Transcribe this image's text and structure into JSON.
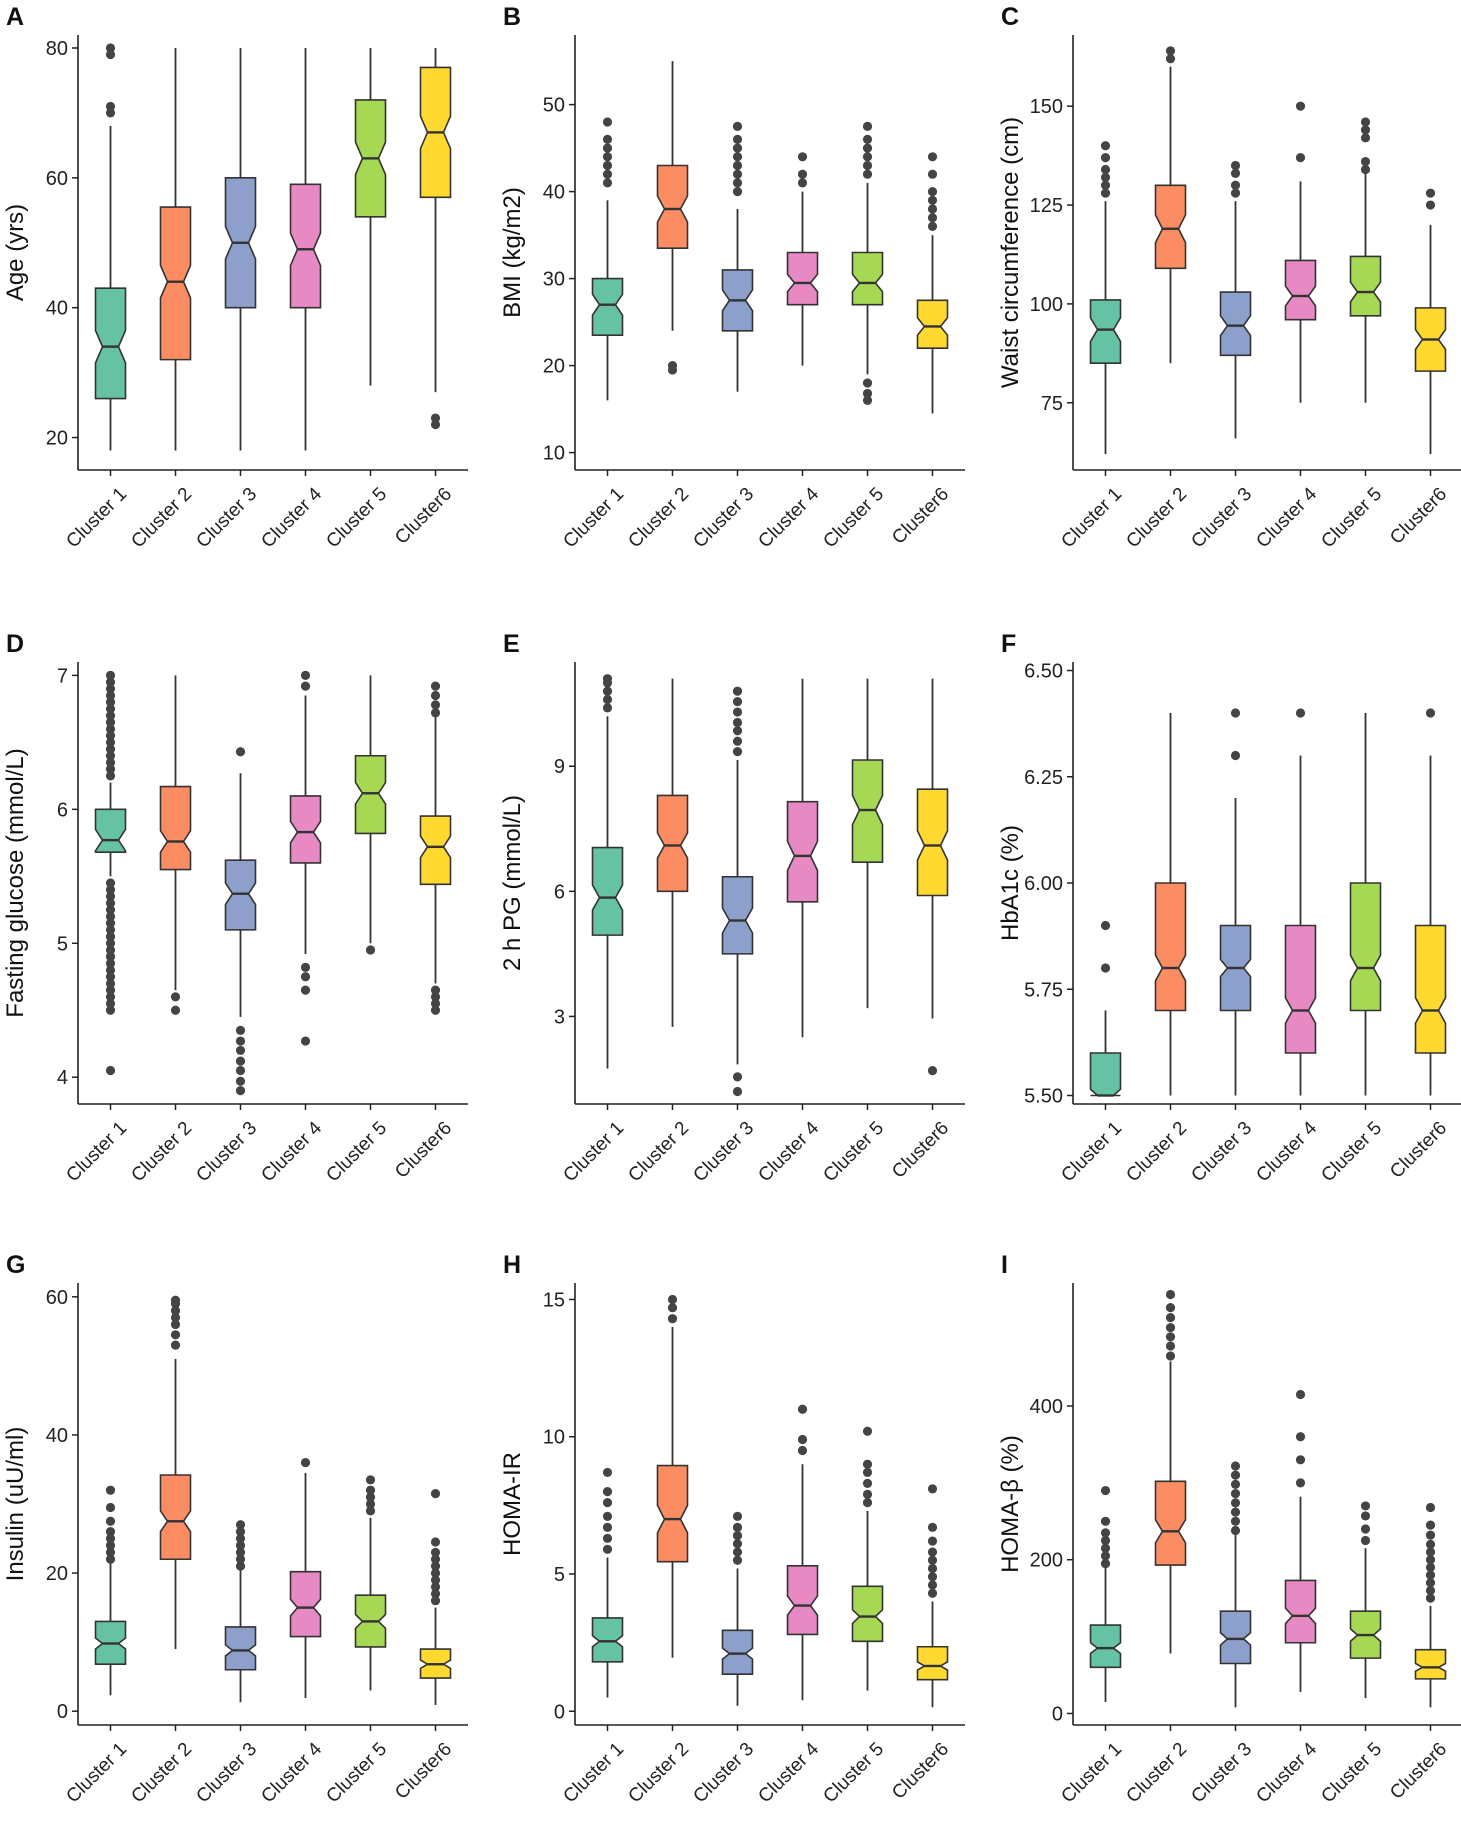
{
  "figure": {
    "colors": [
      "#66c2a5",
      "#fc8d62",
      "#8da0cb",
      "#e78ac3",
      "#a6d854",
      "#ffd92f"
    ],
    "line_color": "#333333",
    "outlier_color": "#444444"
  },
  "chart_data": [
    {
      "type": "box",
      "panel": "A",
      "ylabel": "Age (yrs)",
      "categories": [
        "Cluster 1",
        "Cluster 2",
        "Cluster 3",
        "Cluster 4",
        "Cluster 5",
        "Cluster6"
      ],
      "ylim": [
        15,
        82
      ],
      "yticks": [
        20,
        40,
        60,
        80
      ],
      "tick_labels": [
        "20",
        "40",
        "60",
        "80"
      ],
      "boxes": [
        {
          "q1": 26,
          "median": 34,
          "q3": 43,
          "notch": 2.5,
          "lo": 18,
          "hi": 68,
          "outliers": [
            70,
            71,
            79,
            80
          ]
        },
        {
          "q1": 32,
          "median": 44,
          "q3": 55.5,
          "notch": 2.5,
          "lo": 18,
          "hi": 80,
          "outliers": []
        },
        {
          "q1": 40,
          "median": 50,
          "q3": 60,
          "notch": 2.5,
          "lo": 18,
          "hi": 80,
          "outliers": []
        },
        {
          "q1": 40,
          "median": 49,
          "q3": 59,
          "notch": 2.5,
          "lo": 18,
          "hi": 80,
          "outliers": []
        },
        {
          "q1": 54,
          "median": 63,
          "q3": 72,
          "notch": 2.5,
          "lo": 28,
          "hi": 80,
          "outliers": []
        },
        {
          "q1": 57,
          "median": 67,
          "q3": 77,
          "notch": 2.5,
          "lo": 27,
          "hi": 80,
          "outliers": [
            22,
            23
          ]
        }
      ]
    },
    {
      "type": "box",
      "panel": "B",
      "ylabel": "BMI (kg/m2)",
      "categories": [
        "Cluster 1",
        "Cluster 2",
        "Cluster 3",
        "Cluster 4",
        "Cluster 5",
        "Cluster6"
      ],
      "ylim": [
        8,
        58
      ],
      "yticks": [
        10,
        20,
        30,
        40,
        50
      ],
      "tick_labels": [
        "10",
        "20",
        "30",
        "40",
        "50"
      ],
      "boxes": [
        {
          "q1": 23.5,
          "median": 27,
          "q3": 30,
          "notch": 1.2,
          "lo": 16,
          "hi": 39,
          "outliers": [
            41,
            42,
            43,
            44,
            45,
            46,
            48
          ]
        },
        {
          "q1": 33.5,
          "median": 38,
          "q3": 43,
          "notch": 1.5,
          "lo": 24,
          "hi": 55,
          "outliers": [
            19.5,
            20
          ]
        },
        {
          "q1": 24,
          "median": 27.5,
          "q3": 31,
          "notch": 1.2,
          "lo": 17,
          "hi": 38,
          "outliers": [
            40,
            41,
            42,
            43,
            44,
            45,
            46,
            47.5
          ]
        },
        {
          "q1": 27,
          "median": 29.5,
          "q3": 33,
          "notch": 1.0,
          "lo": 20,
          "hi": 40,
          "outliers": [
            41,
            42,
            44
          ]
        },
        {
          "q1": 27,
          "median": 29.5,
          "q3": 33,
          "notch": 1.0,
          "lo": 19,
          "hi": 41,
          "outliers": [
            16,
            16.8,
            18,
            42,
            43,
            44,
            45,
            46,
            47.5
          ]
        },
        {
          "q1": 22,
          "median": 24.5,
          "q3": 27.5,
          "notch": 1.0,
          "lo": 14.5,
          "hi": 35,
          "outliers": [
            36,
            37,
            38,
            39,
            40,
            42,
            44
          ]
        }
      ]
    },
    {
      "type": "box",
      "panel": "C",
      "ylabel": "Waist circumference (cm)",
      "categories": [
        "Cluster 1",
        "Cluster 2",
        "Cluster 3",
        "Cluster 4",
        "Cluster 5",
        "Cluster6"
      ],
      "ylim": [
        58,
        168
      ],
      "yticks": [
        75,
        100,
        125,
        150
      ],
      "tick_labels": [
        "75",
        "100",
        "125",
        "150"
      ],
      "boxes": [
        {
          "q1": 85,
          "median": 93.5,
          "q3": 101,
          "notch": 3,
          "lo": 62,
          "hi": 126,
          "outliers": [
            128,
            130,
            132,
            134,
            137,
            140
          ]
        },
        {
          "q1": 109,
          "median": 119,
          "q3": 130,
          "notch": 3.5,
          "lo": 85,
          "hi": 160,
          "outliers": [
            162,
            164
          ]
        },
        {
          "q1": 87,
          "median": 94.5,
          "q3": 103,
          "notch": 2.5,
          "lo": 66,
          "hi": 126,
          "outliers": [
            128,
            130,
            133,
            135
          ]
        },
        {
          "q1": 96,
          "median": 102,
          "q3": 111,
          "notch": 2.5,
          "lo": 75,
          "hi": 131,
          "outliers": [
            137,
            150
          ]
        },
        {
          "q1": 97,
          "median": 103,
          "q3": 112,
          "notch": 2.5,
          "lo": 75,
          "hi": 133,
          "outliers": [
            134,
            136,
            142,
            144,
            146
          ]
        },
        {
          "q1": 83,
          "median": 91,
          "q3": 99,
          "notch": 2.5,
          "lo": 62,
          "hi": 120,
          "outliers": [
            125,
            128
          ]
        }
      ]
    },
    {
      "type": "box",
      "panel": "D",
      "ylabel": "Fasting glucose (mmol/L)",
      "categories": [
        "Cluster 1",
        "Cluster 2",
        "Cluster 3",
        "Cluster 4",
        "Cluster 5",
        "Cluster6"
      ],
      "ylim": [
        3.8,
        7.1
      ],
      "yticks": [
        4,
        5,
        6,
        7
      ],
      "tick_labels": [
        "4",
        "5",
        "6",
        "7"
      ],
      "boxes": [
        {
          "q1": 5.68,
          "median": 5.77,
          "q3": 6.0,
          "notch": 0.08,
          "lo": 5.5,
          "hi": 6.2,
          "outliers": [
            4.05,
            4.5,
            4.55,
            4.6,
            4.65,
            4.7,
            4.75,
            4.8,
            4.85,
            4.9,
            4.95,
            5.0,
            5.05,
            5.1,
            5.15,
            5.2,
            5.25,
            5.3,
            5.35,
            5.4,
            5.45,
            6.25,
            6.3,
            6.35,
            6.4,
            6.45,
            6.5,
            6.55,
            6.6,
            6.65,
            6.7,
            6.75,
            6.8,
            6.85,
            6.9,
            6.95,
            7.0
          ]
        },
        {
          "q1": 5.55,
          "median": 5.76,
          "q3": 6.17,
          "notch": 0.08,
          "lo": 4.65,
          "hi": 7.0,
          "outliers": [
            4.5,
            4.6
          ]
        },
        {
          "q1": 5.1,
          "median": 5.37,
          "q3": 5.62,
          "notch": 0.08,
          "lo": 4.45,
          "hi": 6.27,
          "outliers": [
            3.9,
            3.97,
            4.05,
            4.12,
            4.2,
            4.27,
            4.35,
            6.43
          ]
        },
        {
          "q1": 5.6,
          "median": 5.83,
          "q3": 6.1,
          "notch": 0.08,
          "lo": 4.92,
          "hi": 6.85,
          "outliers": [
            4.27,
            4.65,
            4.75,
            4.82,
            6.92,
            7.0
          ]
        },
        {
          "q1": 5.82,
          "median": 6.12,
          "q3": 6.4,
          "notch": 0.08,
          "lo": 5.0,
          "hi": 7.0,
          "outliers": [
            4.95
          ]
        },
        {
          "q1": 5.44,
          "median": 5.72,
          "q3": 5.95,
          "notch": 0.08,
          "lo": 4.7,
          "hi": 6.7,
          "outliers": [
            4.5,
            4.55,
            4.6,
            4.65,
            6.72,
            6.78,
            6.85,
            6.92
          ]
        }
      ]
    },
    {
      "type": "box",
      "panel": "E",
      "ylabel": "2 h PG (mmol/L)",
      "categories": [
        "Cluster 1",
        "Cluster 2",
        "Cluster 3",
        "Cluster 4",
        "Cluster 5",
        "Cluster6"
      ],
      "ylim": [
        0.9,
        11.5
      ],
      "yticks": [
        3,
        6,
        9
      ],
      "tick_labels": [
        "3",
        "6",
        "9"
      ],
      "boxes": [
        {
          "q1": 4.95,
          "median": 5.85,
          "q3": 7.05,
          "notch": 0.3,
          "lo": 1.75,
          "hi": 10.2,
          "outliers": [
            10.4,
            10.6,
            10.8,
            11.0,
            11.1
          ]
        },
        {
          "q1": 6.0,
          "median": 7.1,
          "q3": 8.3,
          "notch": 0.3,
          "lo": 2.75,
          "hi": 11.1,
          "outliers": []
        },
        {
          "q1": 4.5,
          "median": 5.3,
          "q3": 6.35,
          "notch": 0.3,
          "lo": 1.85,
          "hi": 9.15,
          "outliers": [
            1.2,
            1.55,
            9.35,
            9.6,
            9.85,
            10.05,
            10.3,
            10.55,
            10.8
          ]
        },
        {
          "q1": 5.75,
          "median": 6.85,
          "q3": 8.15,
          "notch": 0.35,
          "lo": 2.5,
          "hi": 11.1,
          "outliers": []
        },
        {
          "q1": 6.7,
          "median": 7.95,
          "q3": 9.15,
          "notch": 0.35,
          "lo": 3.2,
          "hi": 11.1,
          "outliers": []
        },
        {
          "q1": 5.9,
          "median": 7.1,
          "q3": 8.45,
          "notch": 0.35,
          "lo": 2.95,
          "hi": 11.1,
          "outliers": [
            1.7
          ]
        }
      ]
    },
    {
      "type": "box",
      "panel": "F",
      "ylabel": "HbA1c (%)",
      "categories": [
        "Cluster 1",
        "Cluster 2",
        "Cluster 3",
        "Cluster 4",
        "Cluster 5",
        "Cluster6"
      ],
      "ylim": [
        5.48,
        6.52
      ],
      "yticks": [
        5.5,
        5.75,
        6.0,
        6.25,
        6.5
      ],
      "tick_labels": [
        "5.50",
        "5.75",
        "6.00",
        "6.25",
        "6.50"
      ],
      "boxes": [
        {
          "q1": 5.5,
          "median": 5.5,
          "q3": 5.6,
          "notch": 0.015,
          "lo": 5.5,
          "hi": 5.7,
          "outliers": [
            5.8,
            5.9
          ]
        },
        {
          "q1": 5.7,
          "median": 5.8,
          "q3": 6.0,
          "notch": 0.03,
          "lo": 5.5,
          "hi": 6.4,
          "outliers": []
        },
        {
          "q1": 5.7,
          "median": 5.8,
          "q3": 5.9,
          "notch": 0.02,
          "lo": 5.5,
          "hi": 6.2,
          "outliers": [
            6.3,
            6.4
          ]
        },
        {
          "q1": 5.6,
          "median": 5.7,
          "q3": 5.9,
          "notch": 0.03,
          "lo": 5.5,
          "hi": 6.3,
          "outliers": [
            6.4
          ]
        },
        {
          "q1": 5.7,
          "median": 5.8,
          "q3": 6.0,
          "notch": 0.03,
          "lo": 5.5,
          "hi": 6.4,
          "outliers": []
        },
        {
          "q1": 5.6,
          "median": 5.7,
          "q3": 5.9,
          "notch": 0.03,
          "lo": 5.5,
          "hi": 6.3,
          "outliers": [
            6.4
          ]
        }
      ]
    },
    {
      "type": "box",
      "panel": "G",
      "ylabel": "Insulin (uU/ml)",
      "categories": [
        "Cluster 1",
        "Cluster 2",
        "Cluster 3",
        "Cluster 4",
        "Cluster 5",
        "Cluster6"
      ],
      "ylim": [
        -2,
        62
      ],
      "yticks": [
        0,
        20,
        40,
        60
      ],
      "tick_labels": [
        "0",
        "20",
        "40",
        "60"
      ],
      "boxes": [
        {
          "q1": 6.8,
          "median": 9.8,
          "q3": 13,
          "notch": 0.8,
          "lo": 2.3,
          "hi": 21.5,
          "outliers": [
            22,
            23,
            24,
            25,
            26,
            27.5,
            29.5,
            32
          ]
        },
        {
          "q1": 22,
          "median": 27.5,
          "q3": 34.2,
          "notch": 1.5,
          "lo": 9,
          "hi": 51,
          "outliers": [
            53,
            54.5,
            56,
            57,
            58,
            59,
            59.5
          ]
        },
        {
          "q1": 6,
          "median": 8.8,
          "q3": 12.2,
          "notch": 0.8,
          "lo": 1.3,
          "hi": 20.5,
          "outliers": [
            21,
            22,
            23,
            24,
            25,
            26,
            27
          ]
        },
        {
          "q1": 10.8,
          "median": 15,
          "q3": 20.2,
          "notch": 1.2,
          "lo": 1.9,
          "hi": 34.5,
          "outliers": [
            36
          ]
        },
        {
          "q1": 9.3,
          "median": 13,
          "q3": 16.8,
          "notch": 1.0,
          "lo": 3,
          "hi": 28,
          "outliers": [
            29,
            30,
            31,
            32,
            33.5
          ]
        },
        {
          "q1": 4.8,
          "median": 6.8,
          "q3": 9,
          "notch": 0.6,
          "lo": 0.9,
          "hi": 15,
          "outliers": [
            16,
            17,
            18,
            19,
            20,
            21,
            22,
            23,
            24.5,
            31.5
          ]
        }
      ]
    },
    {
      "type": "box",
      "panel": "H",
      "ylabel": "HOMA-IR",
      "categories": [
        "Cluster 1",
        "Cluster 2",
        "Cluster 3",
        "Cluster 4",
        "Cluster 5",
        "Cluster6"
      ],
      "ylim": [
        -0.5,
        15.6
      ],
      "yticks": [
        0,
        5,
        10,
        15
      ],
      "tick_labels": [
        "0",
        "5",
        "10",
        "15"
      ],
      "boxes": [
        {
          "q1": 1.8,
          "median": 2.55,
          "q3": 3.4,
          "notch": 0.2,
          "lo": 0.5,
          "hi": 5.6,
          "outliers": [
            5.9,
            6.3,
            6.7,
            7.1,
            7.6,
            8.0,
            8.7
          ]
        },
        {
          "q1": 5.45,
          "median": 7.0,
          "q3": 8.95,
          "notch": 0.5,
          "lo": 1.95,
          "hi": 14.0,
          "outliers": [
            14.3,
            14.7,
            15.0
          ]
        },
        {
          "q1": 1.35,
          "median": 2.1,
          "q3": 2.95,
          "notch": 0.2,
          "lo": 0.2,
          "hi": 5.2,
          "outliers": [
            5.5,
            5.8,
            6.1,
            6.4,
            6.7,
            7.1
          ]
        },
        {
          "q1": 2.8,
          "median": 3.85,
          "q3": 5.3,
          "notch": 0.35,
          "lo": 0.4,
          "hi": 9.0,
          "outliers": [
            9.5,
            9.9,
            11.0
          ]
        },
        {
          "q1": 2.55,
          "median": 3.45,
          "q3": 4.55,
          "notch": 0.25,
          "lo": 0.75,
          "hi": 7.3,
          "outliers": [
            7.6,
            7.9,
            8.3,
            8.7,
            9.0,
            10.2
          ]
        },
        {
          "q1": 1.15,
          "median": 1.65,
          "q3": 2.35,
          "notch": 0.15,
          "lo": 0.15,
          "hi": 4.0,
          "outliers": [
            4.3,
            4.6,
            4.9,
            5.2,
            5.5,
            5.8,
            6.2,
            6.7,
            8.1
          ]
        }
      ]
    },
    {
      "type": "box",
      "panel": "I",
      "ylabel": "HOMA-β (%)",
      "categories": [
        "Cluster 1",
        "Cluster 2",
        "Cluster 3",
        "Cluster 4",
        "Cluster 5",
        "Cluster6"
      ],
      "ylim": [
        -15,
        560
      ],
      "yticks": [
        0,
        200,
        400
      ],
      "tick_labels": [
        "0",
        "200",
        "400"
      ],
      "boxes": [
        {
          "q1": 60,
          "median": 85,
          "q3": 115,
          "notch": 7,
          "lo": 15,
          "hi": 190,
          "outliers": [
            195,
            205,
            215,
            225,
            235,
            250,
            290
          ]
        },
        {
          "q1": 193,
          "median": 237,
          "q3": 302,
          "notch": 15,
          "lo": 78,
          "hi": 458,
          "outliers": [
            465,
            478,
            490,
            502,
            515,
            528,
            545
          ]
        },
        {
          "q1": 65,
          "median": 97,
          "q3": 133,
          "notch": 8,
          "lo": 8,
          "hi": 232,
          "outliers": [
            238,
            250,
            262,
            274,
            286,
            298,
            310,
            322
          ]
        },
        {
          "q1": 92,
          "median": 127,
          "q3": 173,
          "notch": 10,
          "lo": 28,
          "hi": 282,
          "outliers": [
            300,
            330,
            360,
            415
          ]
        },
        {
          "q1": 72,
          "median": 102,
          "q3": 133,
          "notch": 8,
          "lo": 20,
          "hi": 215,
          "outliers": [
            225,
            240,
            257,
            270
          ]
        },
        {
          "q1": 45,
          "median": 60,
          "q3": 83,
          "notch": 5,
          "lo": 8,
          "hi": 140,
          "outliers": [
            150,
            160,
            170,
            180,
            190,
            200,
            210,
            220,
            232,
            245,
            268
          ]
        }
      ]
    }
  ]
}
